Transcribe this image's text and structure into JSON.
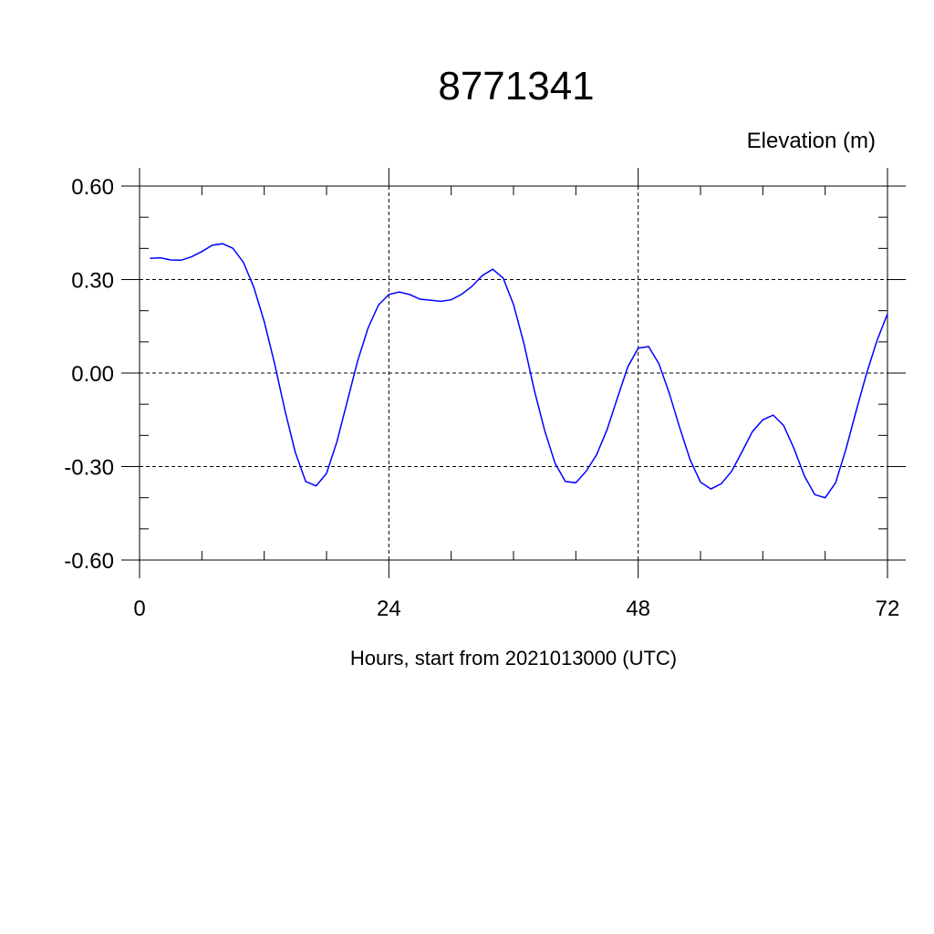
{
  "chart_data": {
    "type": "line",
    "title": "8771341",
    "ylabel": "Elevation (m)",
    "xlabel": "Hours, start from 2021013000 (UTC)",
    "xlim": [
      0,
      72
    ],
    "ylim": [
      -0.6,
      0.6
    ],
    "xticks": [
      0,
      24,
      48,
      72
    ],
    "xtick_labels": [
      "0",
      "24",
      "48",
      "72"
    ],
    "yticks": [
      0.6,
      0.3,
      0.0,
      -0.3,
      -0.6
    ],
    "ytick_labels": [
      "0.60",
      "0.30",
      "0.00",
      "-0.30",
      "-0.60"
    ],
    "grid": true,
    "series": [
      {
        "color": "#0000ff",
        "x": [
          1,
          2,
          3,
          4,
          5,
          6,
          7,
          8,
          9,
          10,
          11,
          12,
          13,
          14,
          15,
          16,
          17,
          18,
          19,
          20,
          21,
          22,
          23,
          24,
          25,
          26,
          27,
          28,
          29,
          30,
          31,
          32,
          33,
          34,
          35,
          36,
          37,
          38,
          39,
          40,
          41,
          42,
          43,
          44,
          45,
          46,
          47,
          48,
          49,
          50,
          51,
          52,
          53,
          54,
          55,
          56,
          57,
          58,
          59,
          60,
          61,
          62,
          63,
          64,
          65,
          66,
          67,
          68,
          69,
          70,
          71,
          72
        ],
        "y": [
          0.368,
          0.37,
          0.363,
          0.362,
          0.373,
          0.39,
          0.41,
          0.415,
          0.4,
          0.355,
          0.275,
          0.165,
          0.03,
          -0.12,
          -0.255,
          -0.348,
          -0.362,
          -0.322,
          -0.22,
          -0.09,
          0.04,
          0.145,
          0.218,
          0.252,
          0.26,
          0.252,
          0.237,
          0.234,
          0.23,
          0.235,
          0.253,
          0.278,
          0.313,
          0.333,
          0.305,
          0.22,
          0.095,
          -0.055,
          -0.185,
          -0.29,
          -0.348,
          -0.352,
          -0.315,
          -0.262,
          -0.182,
          -0.08,
          0.02,
          0.08,
          0.085,
          0.03,
          -0.065,
          -0.175,
          -0.278,
          -0.35,
          -0.372,
          -0.355,
          -0.315,
          -0.252,
          -0.188,
          -0.15,
          -0.135,
          -0.168,
          -0.242,
          -0.33,
          -0.39,
          -0.4,
          -0.352,
          -0.245,
          -0.12,
          0.0,
          0.105,
          0.19
        ]
      }
    ]
  }
}
